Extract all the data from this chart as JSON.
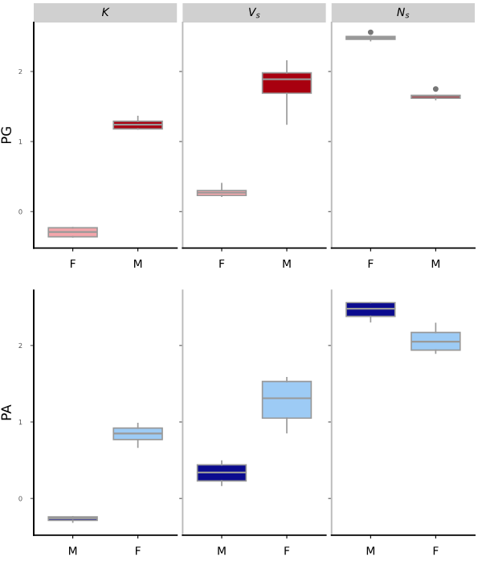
{
  "chart_data": [
    {
      "type": "box",
      "title": "K",
      "ylabel": "PG",
      "categories": [
        "F",
        "M"
      ],
      "colors": [
        "#f4a6ab",
        "#a8000f"
      ],
      "ylim": [
        -0.52,
        2.7
      ],
      "yticks": [
        0,
        1,
        2
      ],
      "grid": false,
      "boxes": [
        {
          "low": -0.36,
          "q1": -0.36,
          "median": -0.29,
          "q3": -0.23,
          "high": -0.23
        },
        {
          "low": 1.18,
          "q1": 1.18,
          "median": 1.24,
          "q3": 1.29,
          "high": 1.36
        }
      ]
    },
    {
      "type": "box",
      "title": "V$_{s}$",
      "categories": [
        "F",
        "M"
      ],
      "colors": [
        "#f4a6ab",
        "#a8000f"
      ],
      "ylim": [
        -0.52,
        2.7
      ],
      "yticks": [
        0,
        1,
        2
      ],
      "tick_labels": "x",
      "grid": false,
      "boxes": [
        {
          "low": 0.22,
          "q1": 0.23,
          "median": 0.27,
          "q3": 0.3,
          "high": 0.4
        },
        {
          "low": 1.25,
          "q1": 1.69,
          "median": 1.89,
          "q3": 1.98,
          "high": 2.15
        }
      ]
    },
    {
      "type": "box",
      "title": "N$_{s}$",
      "categories": [
        "F",
        "M"
      ],
      "colors": [
        "#f4a6ab",
        "#a8000f"
      ],
      "ylim": [
        -0.52,
        2.7
      ],
      "yticks": [
        0,
        1,
        2
      ],
      "tick_labels": "x",
      "grid": false,
      "boxes": [
        {
          "low": 2.44,
          "q1": 2.46,
          "median": 2.48,
          "q3": 2.5,
          "high": 2.5,
          "outliers": [
            2.56
          ]
        },
        {
          "low": 1.6,
          "q1": 1.62,
          "median": 1.65,
          "q3": 1.66,
          "high": 1.66,
          "outliers": [
            1.75
          ]
        }
      ]
    },
    {
      "type": "box",
      "ylabel": "PA",
      "categories": [
        "M",
        "F"
      ],
      "colors": [
        "#0b0b8f",
        "#9dcbf5"
      ],
      "ylim": [
        -0.48,
        2.72
      ],
      "yticks": [
        0,
        1,
        2
      ],
      "grid": false,
      "boxes": [
        {
          "low": -0.31,
          "q1": -0.285,
          "median": -0.26,
          "q3": -0.24,
          "high": -0.24
        },
        {
          "low": 0.67,
          "q1": 0.77,
          "median": 0.85,
          "q3": 0.92,
          "high": 0.98
        }
      ]
    },
    {
      "type": "box",
      "categories": [
        "M",
        "F"
      ],
      "colors": [
        "#0b0b8f",
        "#9dcbf5"
      ],
      "ylim": [
        -0.48,
        2.72
      ],
      "yticks": [
        0,
        1,
        2
      ],
      "tick_labels": "x",
      "grid": false,
      "boxes": [
        {
          "low": 0.17,
          "q1": 0.23,
          "median": 0.34,
          "q3": 0.44,
          "high": 0.49
        },
        {
          "low": 0.86,
          "q1": 1.05,
          "median": 1.31,
          "q3": 1.53,
          "high": 1.58
        }
      ]
    },
    {
      "type": "box",
      "categories": [
        "M",
        "F"
      ],
      "colors": [
        "#0b0b8f",
        "#9dcbf5"
      ],
      "ylim": [
        -0.48,
        2.72
      ],
      "yticks": [
        0,
        1,
        2
      ],
      "tick_labels": "x",
      "grid": false,
      "boxes": [
        {
          "low": 2.31,
          "q1": 2.38,
          "median": 2.48,
          "q3": 2.56,
          "high": 2.56
        },
        {
          "low": 1.9,
          "q1": 1.94,
          "median": 2.05,
          "q3": 2.17,
          "high": 2.29
        }
      ]
    }
  ]
}
